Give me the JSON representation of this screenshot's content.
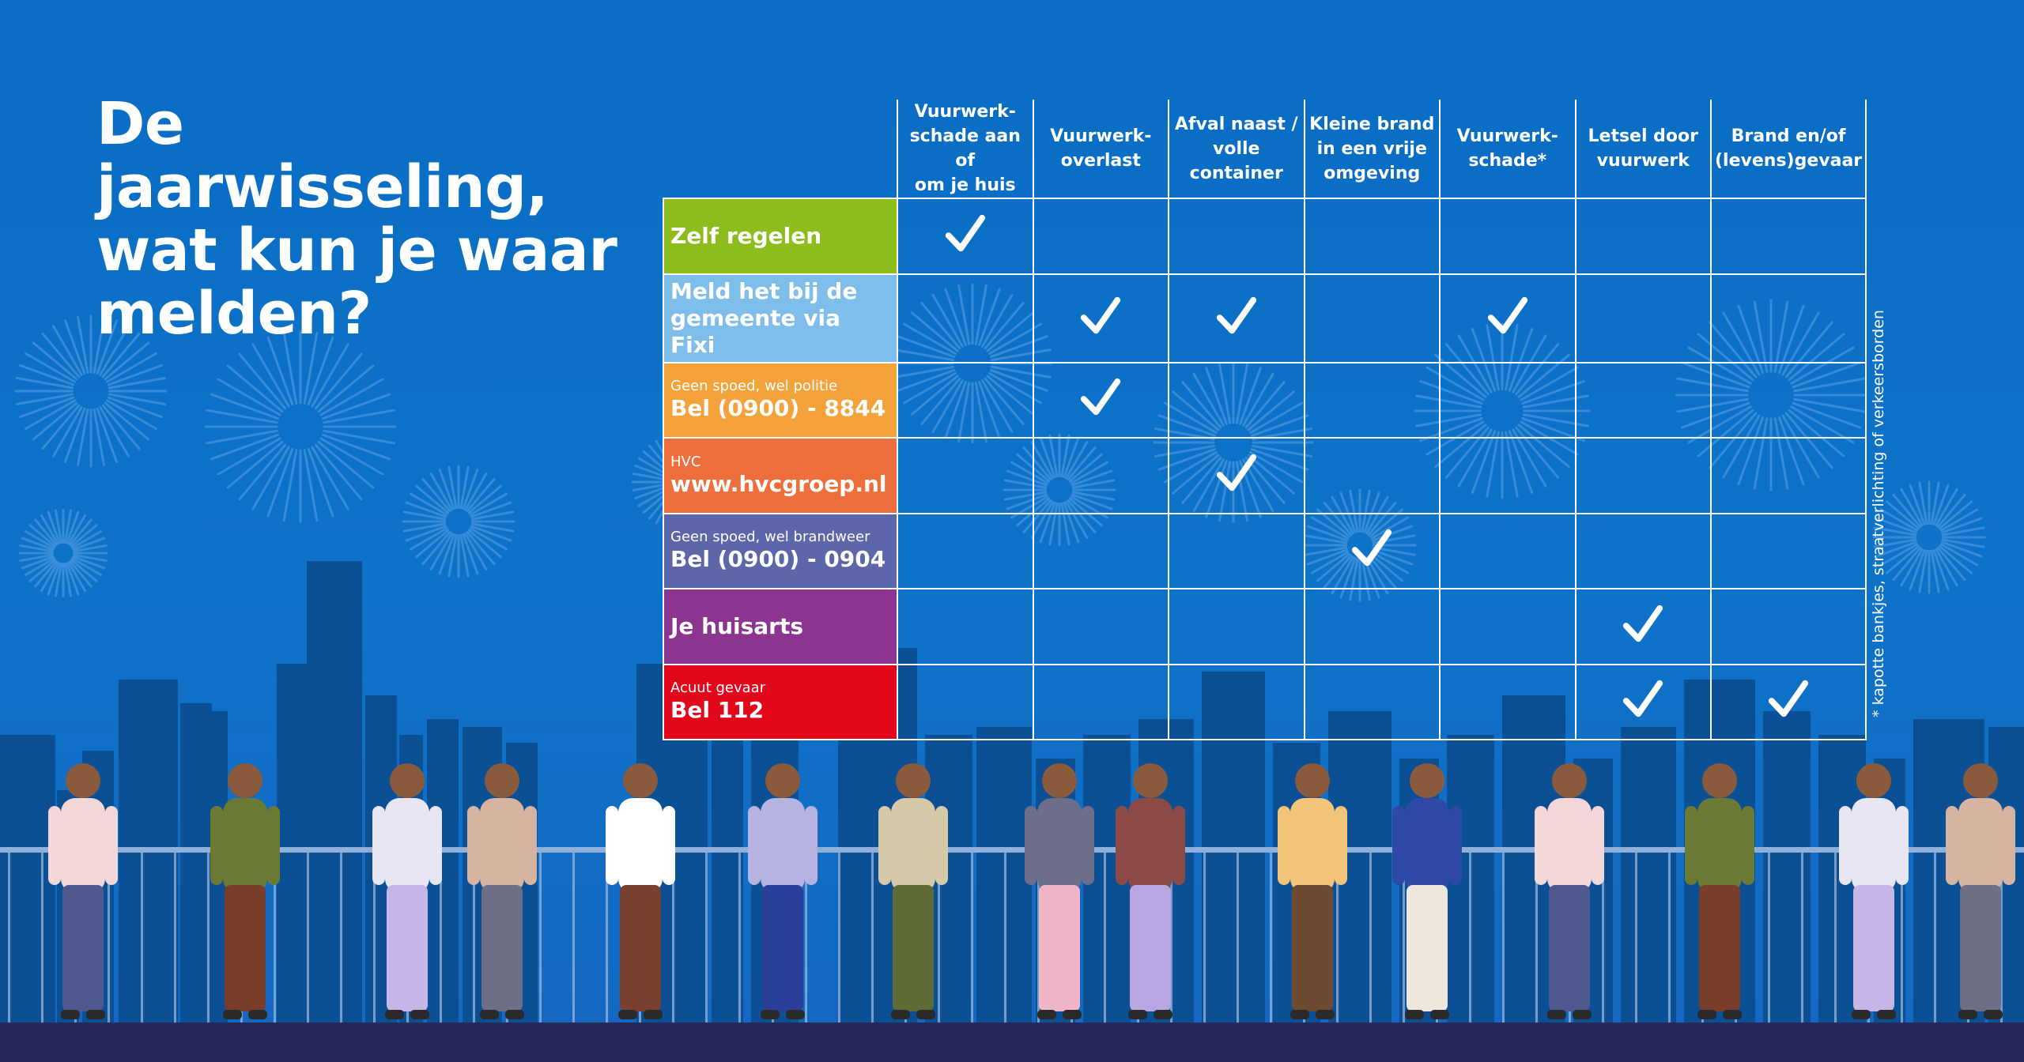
{
  "title": {
    "line1": "De jaarwisseling,",
    "line2": "wat kun je waar",
    "line3": "melden?"
  },
  "columns": [
    {
      "id": "c1",
      "label": "Vuurwerk-\nschade aan of\nom je huis"
    },
    {
      "id": "c2",
      "label": "Vuurwerk-\noverlast"
    },
    {
      "id": "c3",
      "label": "Afval naast /\nvolle\ncontainer"
    },
    {
      "id": "c4",
      "label": "Kleine brand\nin een vrije\nomgeving"
    },
    {
      "id": "c5",
      "label": "Vuurwerk-\nschade*"
    },
    {
      "id": "c6",
      "label": "Letsel door\nvuurwerk"
    },
    {
      "id": "c7",
      "label": "Brand en/of\n(levens)gevaar"
    }
  ],
  "rows": [
    {
      "name": "zelf-regelen",
      "small": "",
      "big": "Zelf regelen",
      "color": "#8cbd1c",
      "checks": [
        true,
        false,
        false,
        false,
        false,
        false,
        false
      ]
    },
    {
      "name": "gemeente-fixi",
      "small": "",
      "big": "Meld het bij de gemeente via Fixi",
      "color": "#7fbdeb",
      "checks": [
        false,
        true,
        true,
        false,
        true,
        false,
        false
      ]
    },
    {
      "name": "politie",
      "small": "Geen spoed, wel politie",
      "big": "Bel (0900) - 8844",
      "color": "#f4a33a",
      "checks": [
        false,
        true,
        false,
        false,
        false,
        false,
        false
      ]
    },
    {
      "name": "hvc",
      "small": "HVC",
      "big": "www.hvcgroep.nl",
      "color": "#ef6f3c",
      "checks": [
        false,
        false,
        true,
        false,
        false,
        false,
        false
      ]
    },
    {
      "name": "brandweer",
      "small": "Geen spoed, wel brandweer",
      "big": "Bel (0900) - 0904",
      "color": "#5c66a8",
      "checks": [
        false,
        false,
        false,
        true,
        false,
        false,
        false
      ]
    },
    {
      "name": "huisarts",
      "small": "",
      "big": "Je huisarts",
      "color": "#8b3590",
      "checks": [
        false,
        false,
        false,
        false,
        false,
        true,
        false
      ]
    },
    {
      "name": "112",
      "small": "Acuut gevaar",
      "big": "Bel 112",
      "color": "#e3071b",
      "checks": [
        false,
        false,
        false,
        false,
        false,
        true,
        true
      ]
    }
  ],
  "footnote": "* kapotte bankjes, straatverlichting of verkeersborden",
  "colors": {
    "sky": "#0d73c9",
    "skyline": "#0b4f94",
    "railing": "#8fb0d8",
    "floor": "#26295a",
    "firework": "#5aa3e6"
  }
}
